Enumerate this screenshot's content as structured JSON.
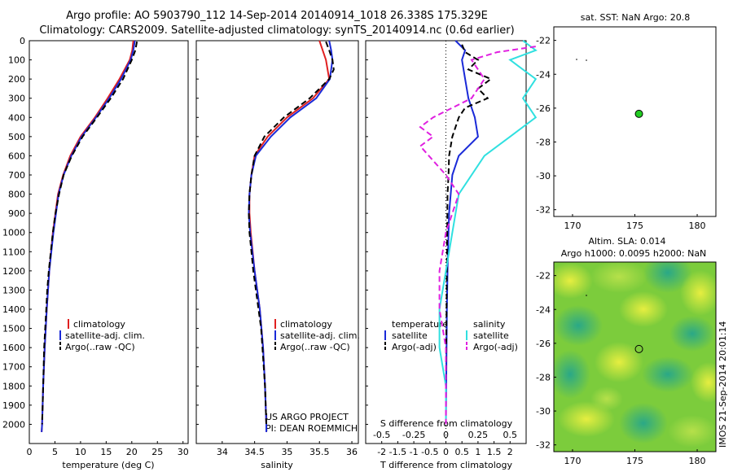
{
  "header": {
    "line1": "Argo profile: AO 5903790_112 14-Sep-2014 20140914_1018 26.338S 175.329E",
    "line2": "Climatology: CARS2009. Satellite-adjusted climatology: synTS_20140914.nc (0.6d earlier)"
  },
  "stamp": "IMOS 21-Sep-2014 20:01:14",
  "colors": {
    "clim": "#e02020",
    "sat": "#1a2ad8",
    "argo": "#000000",
    "sal_sat": "#30e0e0",
    "sal_argo": "#e020e0",
    "dot": "#22cc22"
  },
  "chart_data": [
    {
      "type": "line",
      "xlabel": "temperature (deg C)",
      "xlim": [
        0,
        31
      ],
      "xticks": [
        0,
        5,
        10,
        15,
        20,
        25,
        30
      ],
      "ylim": [
        0,
        2100
      ],
      "yticks": [
        0,
        100,
        200,
        300,
        400,
        500,
        600,
        700,
        800,
        900,
        1000,
        1100,
        1200,
        1300,
        1400,
        1500,
        1600,
        1700,
        1800,
        1900,
        2000
      ],
      "legend": [
        "climatology",
        "satellite-adj. clim.",
        "Argo(..raw -QC)"
      ],
      "series": [
        {
          "name": "climatology",
          "style": "clim",
          "depth": [
            0,
            50,
            100,
            200,
            300,
            400,
            500,
            600,
            700,
            800,
            1000,
            1200,
            1400,
            1600,
            1800,
            2000,
            2040
          ],
          "values": [
            20.3,
            20.1,
            19.6,
            17.6,
            15.3,
            12.8,
            10.0,
            8.0,
            6.6,
            5.6,
            4.6,
            3.9,
            3.4,
            3.0,
            2.7,
            2.5,
            2.4
          ]
        },
        {
          "name": "satellite-adj. clim.",
          "style": "sat",
          "depth": [
            0,
            50,
            100,
            200,
            300,
            400,
            500,
            600,
            700,
            800,
            1000,
            1200,
            1400,
            1600,
            1800,
            2000,
            2040
          ],
          "values": [
            20.6,
            20.3,
            19.8,
            17.9,
            15.6,
            13.0,
            10.2,
            8.2,
            6.7,
            5.7,
            4.7,
            3.9,
            3.4,
            3.0,
            2.7,
            2.5,
            2.4
          ]
        },
        {
          "name": "Argo(..raw -QC)",
          "style": "argo",
          "depth": [
            5,
            50,
            100,
            200,
            300,
            400,
            500,
            600,
            700,
            800,
            900,
            1000,
            1100,
            1200,
            1300,
            1400,
            1500,
            1600,
            1700,
            1800,
            1900,
            2000
          ],
          "values": [
            21.0,
            20.7,
            20.0,
            18.3,
            15.9,
            13.2,
            10.4,
            8.3,
            6.7,
            5.8,
            5.1,
            4.6,
            4.2,
            3.8,
            3.5,
            3.3,
            3.1,
            2.9,
            2.8,
            2.7,
            2.6,
            2.5
          ]
        }
      ]
    },
    {
      "type": "line",
      "xlabel": "salinity",
      "xlim": [
        33.6,
        36.1
      ],
      "xticks": [
        34,
        34.5,
        35,
        35.5,
        36
      ],
      "ylim": [
        0,
        2100
      ],
      "legend": [
        "climatology",
        "satellite-adj. clim.",
        "Argo(..raw -QC)"
      ],
      "footnote": [
        "US ARGO PROJECT",
        "PI: DEAN ROEMMICH"
      ],
      "series": [
        {
          "name": "climatology",
          "style": "clim",
          "depth": [
            0,
            50,
            100,
            200,
            300,
            400,
            500,
            600,
            700,
            800,
            900,
            1000,
            1200,
            1400,
            1600,
            1800,
            2000,
            2040
          ],
          "values": [
            35.5,
            35.55,
            35.6,
            35.65,
            35.4,
            35.0,
            34.7,
            34.5,
            34.45,
            34.42,
            34.42,
            34.44,
            34.5,
            34.58,
            34.63,
            34.66,
            34.68,
            34.68
          ]
        },
        {
          "name": "satellite-adj. clim.",
          "style": "sat",
          "depth": [
            0,
            50,
            100,
            200,
            300,
            400,
            500,
            600,
            700,
            800,
            900,
            1000,
            1200,
            1400,
            1600,
            1800,
            2000,
            2040
          ],
          "values": [
            35.65,
            35.68,
            35.7,
            35.66,
            35.45,
            35.05,
            34.75,
            34.52,
            34.45,
            34.42,
            34.41,
            34.43,
            34.5,
            34.58,
            34.63,
            34.66,
            34.68,
            34.68
          ]
        },
        {
          "name": "Argo(..raw -QC)",
          "style": "argo",
          "depth": [
            5,
            50,
            100,
            150,
            200,
            300,
            400,
            500,
            600,
            700,
            800,
            900,
            1000,
            1100,
            1200,
            1300,
            1400,
            1500,
            1600,
            1700,
            1800,
            1900,
            2000
          ],
          "values": [
            35.6,
            35.65,
            35.7,
            35.72,
            35.65,
            35.35,
            34.95,
            34.65,
            34.5,
            34.45,
            34.42,
            34.41,
            34.42,
            34.45,
            34.48,
            34.52,
            34.56,
            34.6,
            34.62,
            34.64,
            34.66,
            34.67,
            34.68
          ]
        }
      ]
    },
    {
      "type": "line",
      "xlabel": "T difference from climatology",
      "xlabel_top": "S difference from climatology",
      "xlim": [
        -2.5,
        2.5
      ],
      "xticks": [
        -2,
        -1.5,
        -1,
        -0.5,
        0,
        0.5,
        1,
        1.5,
        2
      ],
      "xticks_top": [
        -0.5,
        -0.25,
        0,
        0.25,
        0.5
      ],
      "ylim": [
        0,
        2100
      ],
      "legend_temp": {
        "title": "temperature",
        "items": [
          "satellite",
          "Argo(-adj)"
        ]
      },
      "legend_sal": {
        "title": "salinity",
        "items": [
          "satellite",
          "Argo(-adj)"
        ]
      },
      "series": [
        {
          "name": "temperature satellite",
          "style": "sat",
          "depth": [
            0,
            50,
            100,
            200,
            300,
            400,
            500,
            600,
            700,
            800,
            900,
            1000,
            1200,
            1400,
            1600,
            1800,
            2000
          ],
          "values": [
            0.3,
            0.6,
            0.5,
            0.6,
            0.7,
            0.9,
            1.0,
            0.4,
            0.2,
            0.15,
            0.1,
            0.08,
            0.05,
            0.03,
            0.02,
            0.01,
            0.0
          ]
        },
        {
          "name": "temperature Argo(-adj)",
          "style": "argo",
          "depth": [
            20,
            60,
            100,
            150,
            200,
            250,
            300,
            350,
            400,
            500,
            600,
            700,
            800,
            1000,
            1200,
            1400,
            1600,
            1800,
            2000
          ],
          "values": [
            0.5,
            0.6,
            1.0,
            0.7,
            1.4,
            1.0,
            1.3,
            0.6,
            0.4,
            0.2,
            0.1,
            0.08,
            0.05,
            0.04,
            0.03,
            0.02,
            0.01,
            0.0,
            0.0
          ]
        },
        {
          "name": "salinity satellite",
          "style": "sal_sat",
          "depth": [
            0,
            50,
            100,
            200,
            300,
            400,
            500,
            600,
            800,
            1000,
            1200,
            1400,
            1600,
            1800,
            2000
          ],
          "values": [
            0.6,
            0.7,
            0.5,
            0.7,
            0.6,
            0.7,
            0.5,
            0.3,
            0.1,
            0.05,
            0.0,
            -0.05,
            -0.05,
            0.0,
            0.0
          ]
        },
        {
          "name": "salinity Argo(-adj)",
          "style": "sal_argo",
          "depth": [
            30,
            60,
            100,
            200,
            300,
            400,
            450,
            500,
            550,
            700,
            800,
            900,
            1000,
            1200,
            1400,
            1600,
            2000
          ],
          "values": [
            0.7,
            0.4,
            0.2,
            0.3,
            0.2,
            -0.1,
            -0.2,
            -0.1,
            -0.2,
            0.0,
            0.1,
            0.05,
            0.0,
            -0.05,
            -0.05,
            0.0,
            0.0
          ]
        }
      ]
    },
    {
      "type": "scatter",
      "title": "sat. SST: NaN Argo: 20.8",
      "xlim": [
        168.5,
        181.5
      ],
      "xticks": [
        170,
        175,
        180
      ],
      "ylim": [
        -32.4,
        -21.2
      ],
      "yticks": [
        -22,
        -24,
        -26,
        -28,
        -30,
        -32
      ],
      "points": [
        {
          "x": 175.329,
          "y": -26.338
        }
      ]
    },
    {
      "type": "heatmap",
      "title": "Altim. SLA: 0.014",
      "subtitle": "Argo h1000: 0.0095 h2000: NaN",
      "xlim": [
        168.5,
        181.5
      ],
      "xticks": [
        170,
        175,
        180
      ],
      "ylim": [
        -32.4,
        -21.2
      ],
      "yticks": [
        -22,
        -24,
        -26,
        -28,
        -30,
        -32
      ],
      "points": [
        {
          "x": 175.329,
          "y": -26.338
        }
      ]
    }
  ]
}
